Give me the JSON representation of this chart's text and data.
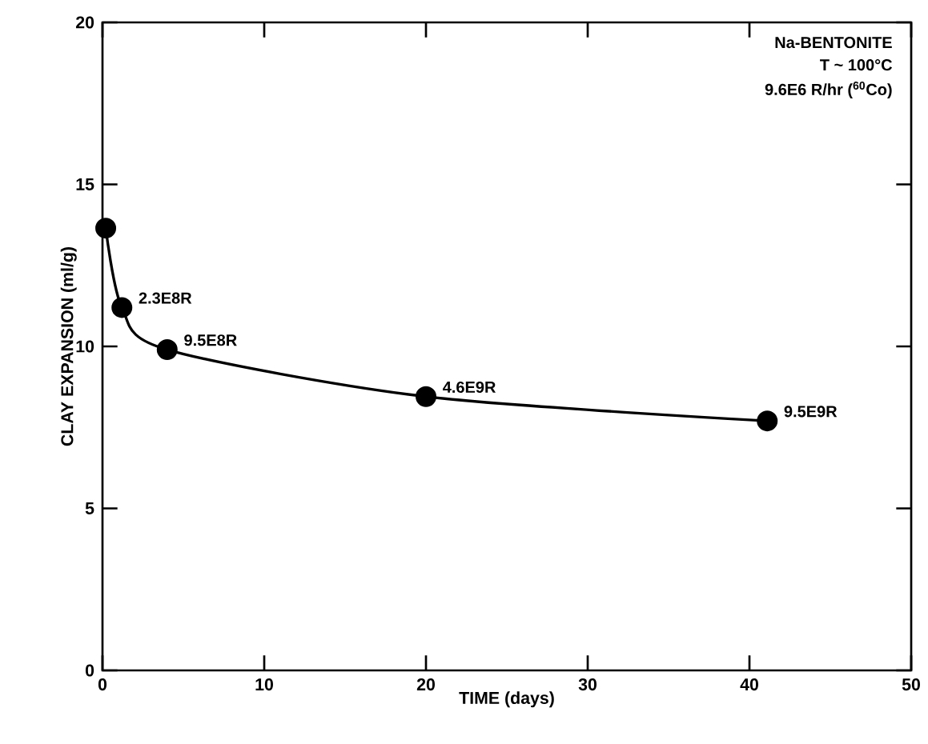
{
  "chart_data": {
    "type": "line",
    "xlabel": "TIME (days)",
    "ylabel": "CLAY EXPANSION (ml/g)",
    "x": [
      0.2,
      1.2,
      4.0,
      20.0,
      41.1
    ],
    "values": [
      13.65,
      11.2,
      9.9,
      8.45,
      7.7
    ],
    "color": "#000000",
    "marker": "circle",
    "line_style": "solid",
    "grid": false,
    "xlim": [
      0,
      50
    ],
    "ylim": [
      0,
      20
    ],
    "xticks": [
      0,
      10,
      20,
      30,
      40,
      50
    ],
    "yticks": [
      0,
      5,
      10,
      15,
      20
    ],
    "annotations": [
      "Na-BENTONITE",
      "T ~ 100°C",
      "9.6E6 R/hr ($^{60}$Co)",
      {
        "text": "2.3E8R",
        "x": 1.2,
        "y": 11.2
      },
      {
        "text": "9.5E8R",
        "x": 4.0,
        "y": 9.9
      },
      {
        "text": "4.6E9R",
        "x": 20.0,
        "y": 8.45
      },
      {
        "text": "9.5E9R",
        "x": 41.1,
        "y": 7.7
      }
    ]
  }
}
